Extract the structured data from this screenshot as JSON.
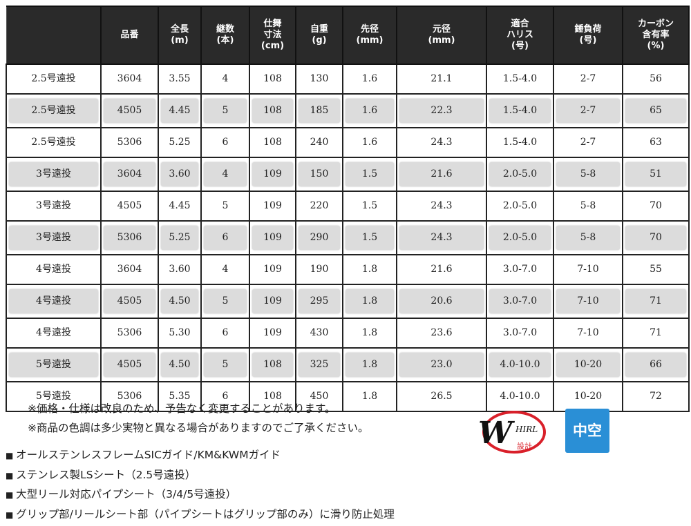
{
  "table": {
    "headers": [
      "",
      "品番",
      "全長\n(m)",
      "継数\n(本)",
      "仕舞\n寸法\n(cm)",
      "自重\n(g)",
      "先径\n(mm)",
      "元径\n(mm)",
      "適合\nハリス\n(号)",
      "錘負荷\n(号)",
      "カーボン\n含有率\n(%)"
    ],
    "rows": [
      [
        "2.5号遠投",
        "3604",
        "3.55",
        "4",
        "108",
        "130",
        "1.6",
        "21.1",
        "1.5-4.0",
        "2-7",
        "56"
      ],
      [
        "2.5号遠投",
        "4505",
        "4.45",
        "5",
        "108",
        "185",
        "1.6",
        "22.3",
        "1.5-4.0",
        "2-7",
        "65"
      ],
      [
        "2.5号遠投",
        "5306",
        "5.25",
        "6",
        "108",
        "240",
        "1.6",
        "24.3",
        "1.5-4.0",
        "2-7",
        "63"
      ],
      [
        "3号遠投",
        "3604",
        "3.60",
        "4",
        "109",
        "150",
        "1.5",
        "21.6",
        "2.0-5.0",
        "5-8",
        "51"
      ],
      [
        "3号遠投",
        "4505",
        "4.45",
        "5",
        "109",
        "220",
        "1.5",
        "24.3",
        "2.0-5.0",
        "5-8",
        "70"
      ],
      [
        "3号遠投",
        "5306",
        "5.25",
        "6",
        "109",
        "290",
        "1.5",
        "24.3",
        "2.0-5.0",
        "5-8",
        "70"
      ],
      [
        "4号遠投",
        "3604",
        "3.60",
        "4",
        "109",
        "190",
        "1.8",
        "21.6",
        "3.0-7.0",
        "7-10",
        "55"
      ],
      [
        "4号遠投",
        "4505",
        "4.50",
        "5",
        "109",
        "295",
        "1.8",
        "20.6",
        "3.0-7.0",
        "7-10",
        "71"
      ],
      [
        "4号遠投",
        "5306",
        "5.30",
        "6",
        "109",
        "430",
        "1.8",
        "23.6",
        "3.0-7.0",
        "7-10",
        "71"
      ],
      [
        "5号遠投",
        "4505",
        "4.50",
        "5",
        "108",
        "325",
        "1.8",
        "23.0",
        "4.0-10.0",
        "10-20",
        "66"
      ],
      [
        "5号遠投",
        "5306",
        "5.35",
        "6",
        "108",
        "450",
        "1.8",
        "26.5",
        "4.0-10.0",
        "10-20",
        "72"
      ]
    ]
  },
  "notes": [
    "※価格・仕様は改良のため、予告なく変更することがあります。",
    "※商品の色調は多少実物と異なる場合がありますのでご了承ください。"
  ],
  "features": [
    "オールステンレスフレームSICガイド/KM&KWMガイド",
    "ステンレス製LSシート（2.5号遠投）",
    "大型リール対応パイプシート（3/4/5号遠投）",
    "グリップ部/リールシート部（パイプシートはグリップ部のみ）に滑り防止処理"
  ],
  "logo": {
    "text": "WHIRL 設計",
    "color": "#d9202a"
  },
  "badge": {
    "label": "中空",
    "color": "#2a8fd6"
  }
}
